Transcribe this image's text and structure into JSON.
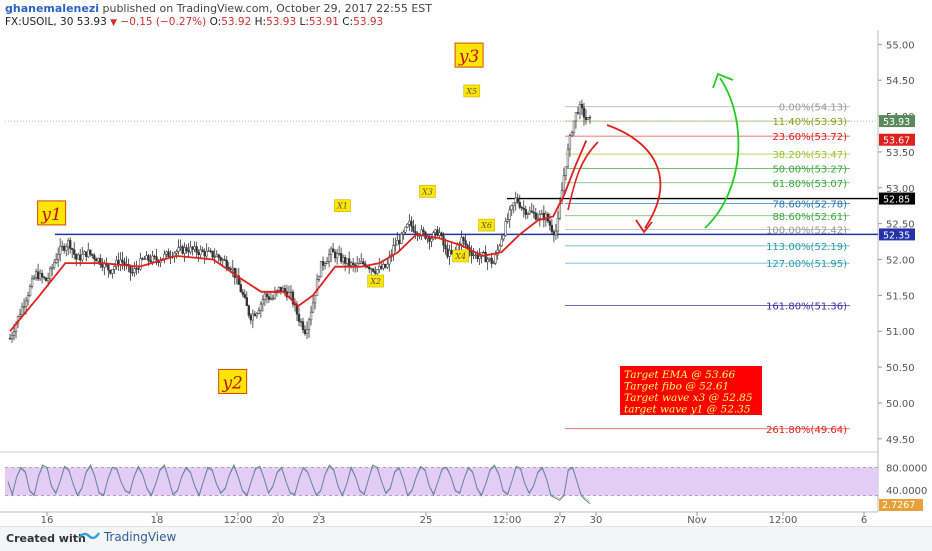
{
  "header": {
    "user": "ghanemalenezi",
    "published": "published on TradingView.com, October 29, 2017 22:55 EST",
    "symbol": "FX:USOIL, 30",
    "price": "53.93",
    "change": "−0.15 (−0.27%)",
    "open_label": "O:",
    "open": "53.92",
    "high_label": "H:",
    "high": "53.93",
    "low_label": "L:",
    "low": "53.91",
    "close_label": "C:",
    "close": "53.93"
  },
  "footer": {
    "created": "Created with",
    "brand": "TradingView"
  },
  "colors": {
    "candle": "#333333",
    "ema": "#e0201c",
    "support": "#2633a8",
    "resistance": "#000000",
    "rsi_fill": "#e3ccf5",
    "rsi_line": "#777777",
    "box_bg": "#ffe600",
    "box_border": "#d04a00",
    "arrow_red": "#e0201c",
    "arrow_green": "#22cc22",
    "target_bg": "#ff0000"
  },
  "chart_data": {
    "type": "candlestick",
    "ylim": [
      49.4,
      55.2
    ],
    "y_ticks": [
      "55.00",
      "54.50",
      "54.00",
      "53.50",
      "53.00",
      "52.50",
      "52.00",
      "51.50",
      "51.00",
      "50.50",
      "50.00",
      "49.50"
    ],
    "x_ticks": [
      "16",
      "18",
      "12:00",
      "20",
      "23",
      "25",
      "12:00",
      "27",
      "30",
      "Nov",
      "12:00",
      "6"
    ],
    "price_path": [
      [
        0,
        50.9
      ],
      [
        3,
        51.3
      ],
      [
        7,
        51.8
      ],
      [
        10,
        51.7
      ],
      [
        13,
        52.1
      ],
      [
        16,
        52.25
      ],
      [
        18,
        52.0
      ],
      [
        21,
        52.1
      ],
      [
        24,
        52.0
      ],
      [
        27,
        51.85
      ],
      [
        30,
        52.0
      ],
      [
        33,
        51.8
      ],
      [
        36,
        52.0
      ],
      [
        40,
        52.0
      ],
      [
        44,
        52.1
      ],
      [
        48,
        52.15
      ],
      [
        52,
        52.1
      ],
      [
        56,
        52.05
      ],
      [
        60,
        51.9
      ],
      [
        63,
        51.5
      ],
      [
        65,
        51.2
      ],
      [
        67,
        51.3
      ],
      [
        69,
        51.5
      ],
      [
        71,
        51.45
      ],
      [
        73,
        51.6
      ],
      [
        76,
        51.5
      ],
      [
        78,
        51.2
      ],
      [
        80,
        51.0
      ],
      [
        82,
        51.4
      ],
      [
        84,
        51.9
      ],
      [
        87,
        52.1
      ],
      [
        90,
        52.0
      ],
      [
        93,
        51.9
      ],
      [
        96,
        51.95
      ],
      [
        99,
        51.85
      ],
      [
        102,
        51.9
      ],
      [
        104,
        52.2
      ],
      [
        106,
        52.3
      ],
      [
        108,
        52.5
      ],
      [
        110,
        52.4
      ],
      [
        112,
        52.35
      ],
      [
        114,
        52.3
      ],
      [
        116,
        52.4
      ],
      [
        118,
        52.1
      ],
      [
        120,
        52.05
      ],
      [
        122,
        52.3
      ],
      [
        124,
        52.15
      ],
      [
        126,
        52.05
      ],
      [
        128,
        52.05
      ],
      [
        131,
        51.95
      ],
      [
        133,
        52.3
      ],
      [
        135,
        52.6
      ],
      [
        137,
        52.85
      ],
      [
        139,
        52.7
      ],
      [
        141,
        52.65
      ],
      [
        143,
        52.6
      ],
      [
        145,
        52.6
      ],
      [
        147,
        52.4
      ],
      [
        148,
        52.4
      ],
      [
        149,
        52.8
      ],
      [
        150,
        53.2
      ],
      [
        151,
        53.5
      ],
      [
        152,
        53.8
      ],
      [
        153,
        54.0
      ],
      [
        154,
        54.13
      ],
      [
        155,
        54.05
      ],
      [
        156,
        53.95
      ],
      [
        157,
        53.93
      ]
    ],
    "ema": [
      [
        0,
        51.0
      ],
      [
        8,
        51.5
      ],
      [
        15,
        51.95
      ],
      [
        25,
        51.95
      ],
      [
        35,
        51.9
      ],
      [
        45,
        52.05
      ],
      [
        55,
        52.0
      ],
      [
        62,
        51.75
      ],
      [
        68,
        51.55
      ],
      [
        74,
        51.55
      ],
      [
        78,
        51.35
      ],
      [
        82,
        51.5
      ],
      [
        88,
        51.9
      ],
      [
        95,
        51.9
      ],
      [
        100,
        51.95
      ],
      [
        105,
        52.1
      ],
      [
        110,
        52.35
      ],
      [
        116,
        52.3
      ],
      [
        122,
        52.2
      ],
      [
        128,
        52.05
      ],
      [
        133,
        52.1
      ],
      [
        138,
        52.35
      ],
      [
        143,
        52.55
      ],
      [
        147,
        52.6
      ],
      [
        150,
        52.9
      ],
      [
        153,
        53.3
      ],
      [
        156,
        53.66
      ]
    ],
    "fib_levels": [
      {
        "label": "0.00%(54.13)",
        "value": 54.13,
        "color": "#999999"
      },
      {
        "label": "11.40%(53.93)",
        "value": 53.93,
        "color": "#7fa51e"
      },
      {
        "label": "23.60%(53.72)",
        "value": 53.72,
        "color": "#e0201c"
      },
      {
        "label": "38.20%(53.47)",
        "value": 53.47,
        "color": "#99c434"
      },
      {
        "label": "50.00%(53.27)",
        "value": 53.27,
        "color": "#3da63d"
      },
      {
        "label": "61.80%(53.07)",
        "value": 53.07,
        "color": "#3da63d"
      },
      {
        "label": "78.60%(52.78)",
        "value": 52.78,
        "color": "#2278b8"
      },
      {
        "label": "88.60%(52.61)",
        "value": 52.61,
        "color": "#3da63d"
      },
      {
        "label": "100.00%(52.42)",
        "value": 52.42,
        "color": "#999999"
      },
      {
        "label": "113.00%(52.19)",
        "value": 52.19,
        "color": "#2a9cb0"
      },
      {
        "label": "127.00%(51.95)",
        "value": 51.95,
        "color": "#2a9cb0"
      },
      {
        "label": "161.80%(51.36)",
        "value": 51.36,
        "color": "#3d2fa8"
      },
      {
        "label": "261.80%(49.64)",
        "value": 49.64,
        "color": "#e0201c"
      }
    ],
    "price_tags": [
      {
        "text": "53.93",
        "value": 53.93,
        "bg": "#5a8a5a"
      },
      {
        "text": "53.67",
        "value": 53.67,
        "bg": "#e0201c"
      },
      {
        "text": "52.85",
        "value": 52.85,
        "bg": "#000000"
      },
      {
        "text": "52.35",
        "value": 52.35,
        "bg": "#2633a8"
      }
    ],
    "support_level": 52.35,
    "resistance_level": 52.85,
    "wave_labels": [
      {
        "text": "y1",
        "t": 11,
        "value": 52.65,
        "big": true
      },
      {
        "text": "y2",
        "t": 60,
        "value": 50.3,
        "big": true
      },
      {
        "text": "y3",
        "t": 124,
        "value": 54.85,
        "big": true
      },
      {
        "text": "X1",
        "t": 90,
        "value": 52.75,
        "big": false
      },
      {
        "text": "X2",
        "t": 99,
        "value": 51.7,
        "big": false
      },
      {
        "text": "X3",
        "t": 113,
        "value": 52.95,
        "big": false
      },
      {
        "text": "X4",
        "t": 122,
        "value": 52.05,
        "big": false
      },
      {
        "text": "X5",
        "t": 125,
        "value": 54.35,
        "big": false
      },
      {
        "text": "X6",
        "t": 129,
        "value": 52.48,
        "big": false
      }
    ],
    "targets": [
      "Target  EMA @ 53.66",
      "Target fibo @ 52.61",
      "Target wave x3 @ 52.85",
      "target wave y1 @ 52.35"
    ],
    "rsi": {
      "ticks": [
        "80.0000",
        "40.0000"
      ],
      "value_tag": "2.7267",
      "upper": 80,
      "lower": 20,
      "ylim": [
        0,
        100
      ],
      "values": [
        50,
        22,
        60,
        80,
        70,
        30,
        20,
        60,
        85,
        80,
        40,
        25,
        50,
        82,
        75,
        45,
        20,
        35,
        70,
        85,
        60,
        25,
        20,
        55,
        80,
        78,
        50,
        30,
        25,
        60,
        82,
        65,
        35,
        20,
        45,
        75,
        85,
        55,
        22,
        30,
        60,
        80,
        70,
        40,
        20,
        50,
        80,
        75,
        45,
        25,
        35,
        65,
        85,
        60,
        30,
        20,
        50,
        78,
        82,
        55,
        25,
        40,
        70,
        80,
        50,
        25,
        22,
        55,
        80,
        70,
        45,
        20,
        30,
        65,
        85,
        75,
        40,
        20,
        45,
        80,
        60,
        30,
        22,
        55,
        85,
        80,
        50,
        25,
        35,
        70,
        80,
        55,
        20,
        30,
        60,
        82,
        75,
        40,
        22,
        50,
        78,
        80,
        60,
        30,
        25,
        55,
        80,
        70,
        35,
        20,
        45,
        75,
        85,
        65,
        30,
        22,
        50,
        82,
        78,
        45,
        25,
        40,
        70,
        80,
        55,
        20,
        15,
        10,
        20,
        75,
        80,
        50,
        20,
        10,
        3
      ]
    }
  }
}
